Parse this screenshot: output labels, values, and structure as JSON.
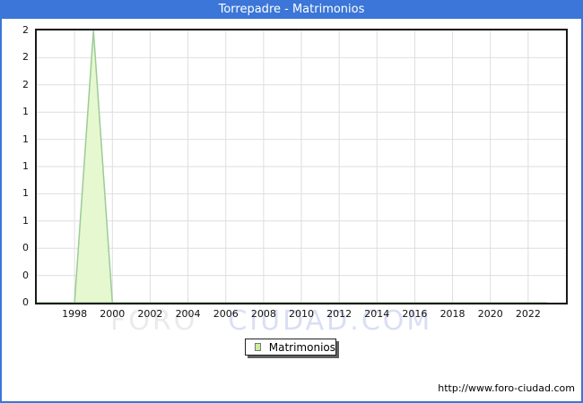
{
  "theme": {
    "accent": "#3b76d8"
  },
  "titlebar": {
    "title": "Torrepadre - Matrimonios"
  },
  "chart_data": {
    "type": "area",
    "title": "Torrepadre - Matrimonios",
    "series_name": "Matrimonios",
    "x": [
      1996,
      1997,
      1998,
      1999,
      2000,
      2001,
      2002,
      2003,
      2004,
      2005,
      2006,
      2007,
      2008,
      2009,
      2010,
      2011,
      2012,
      2013,
      2014,
      2015,
      2016,
      2017,
      2018,
      2019,
      2020,
      2021,
      2022,
      2023
    ],
    "values": [
      0,
      0,
      0,
      2,
      0,
      0,
      0,
      0,
      0,
      0,
      0,
      0,
      0,
      0,
      0,
      0,
      0,
      0,
      0,
      0,
      0,
      0,
      0,
      0,
      0,
      0,
      0,
      0
    ],
    "xlabel": "",
    "ylabel": "",
    "xlim": [
      1996,
      2024
    ],
    "ylim": [
      0,
      2
    ],
    "grid": true,
    "grid_color": "#dedede",
    "fill_color": "#e6f8d0",
    "stroke_color": "#9ccb96",
    "legend_position": "bottom-center",
    "xticks": [
      {
        "value": 1998,
        "label": "1998"
      },
      {
        "value": 2000,
        "label": "2000"
      },
      {
        "value": 2002,
        "label": "2002"
      },
      {
        "value": 2004,
        "label": "2004"
      },
      {
        "value": 2006,
        "label": "2006"
      },
      {
        "value": 2008,
        "label": "2008"
      },
      {
        "value": 2010,
        "label": "2010"
      },
      {
        "value": 2012,
        "label": "2012"
      },
      {
        "value": 2014,
        "label": "2014"
      },
      {
        "value": 2016,
        "label": "2016"
      },
      {
        "value": 2018,
        "label": "2018"
      },
      {
        "value": 2020,
        "label": "2020"
      },
      {
        "value": 2022,
        "label": "2022"
      }
    ],
    "yticks": [
      {
        "value": 2.0,
        "label": "2"
      },
      {
        "value": 1.8,
        "label": "2"
      },
      {
        "value": 1.6,
        "label": "2"
      },
      {
        "value": 1.4,
        "label": "1"
      },
      {
        "value": 1.2,
        "label": "1"
      },
      {
        "value": 1.0,
        "label": "1"
      },
      {
        "value": 0.8,
        "label": "1"
      },
      {
        "value": 0.6,
        "label": "1"
      },
      {
        "value": 0.4,
        "label": "0"
      },
      {
        "value": 0.2,
        "label": "0"
      },
      {
        "value": 0.0,
        "label": "0"
      }
    ]
  },
  "legend": {
    "label": "Matrimonios",
    "swatch_fill": "#c9ef9b",
    "swatch_border": "#777777"
  },
  "watermark": {
    "part1": "FORO",
    "part2": "CIUDAD.COM"
  },
  "footer": {
    "url": "http://www.foro-ciudad.com"
  }
}
